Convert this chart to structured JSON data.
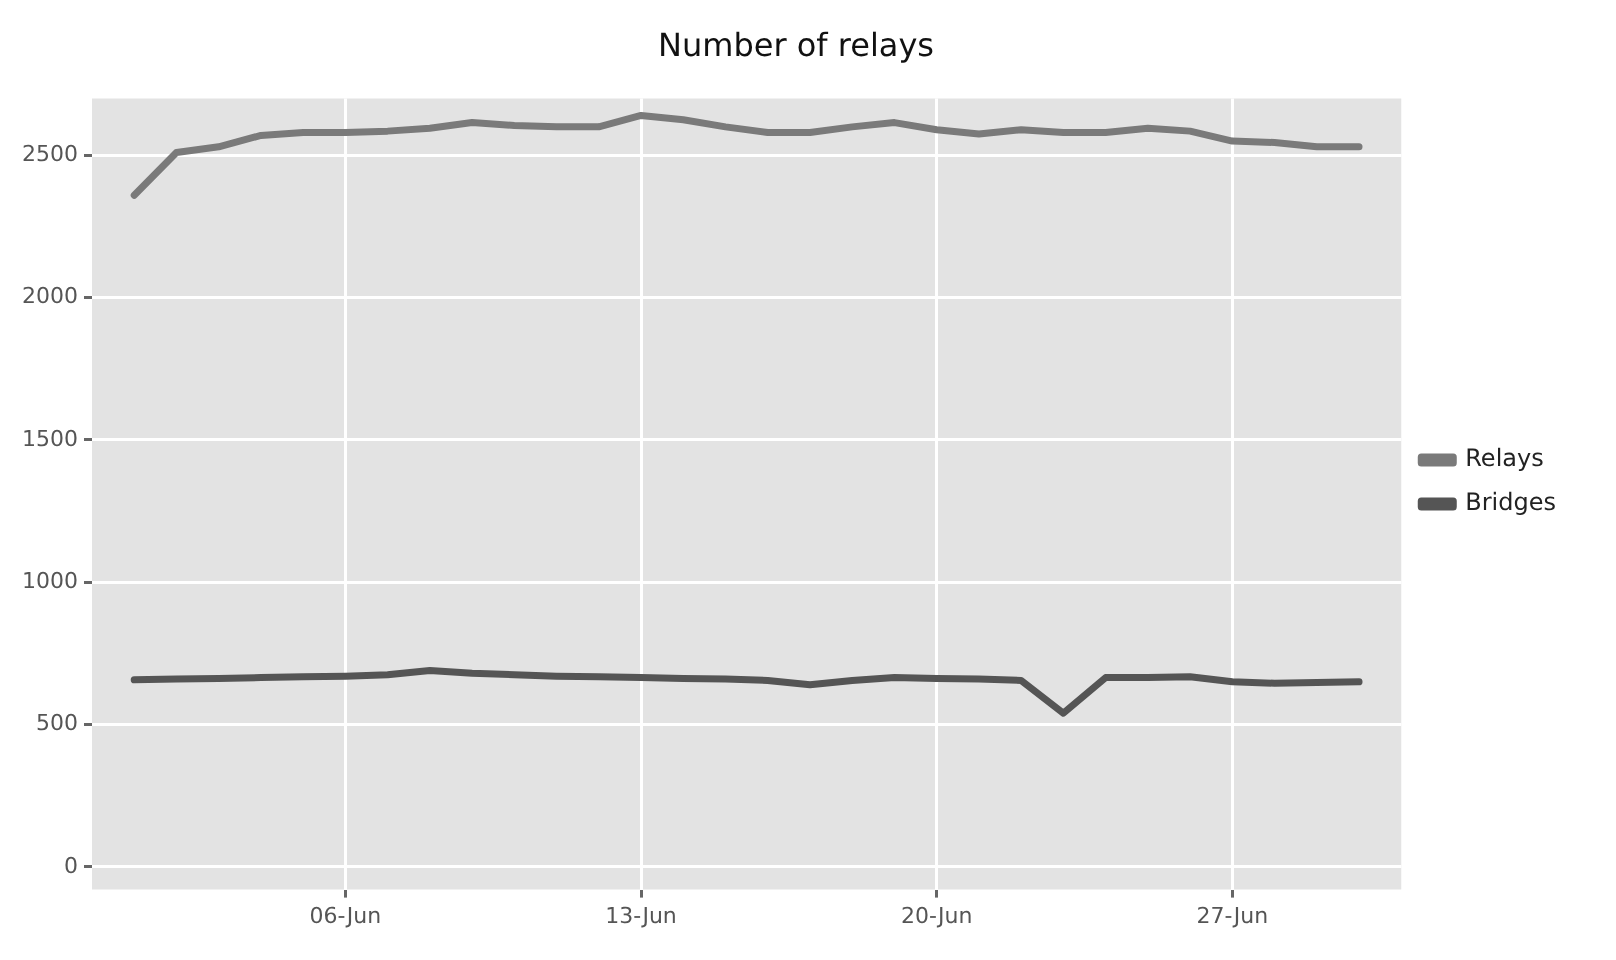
{
  "chart_data": {
    "type": "line",
    "title": "Number of relays",
    "x": [
      "--06-01",
      "--06-02",
      "--06-03",
      "--06-04",
      "--06-05",
      "--06-06",
      "--06-07",
      "--06-08",
      "--06-09",
      "--06-10",
      "--06-11",
      "--06-12",
      "--06-13",
      "--06-14",
      "--06-15",
      "--06-16",
      "--06-17",
      "--06-18",
      "--06-19",
      "--06-20",
      "--06-21",
      "--06-22",
      "--06-23",
      "--06-24",
      "--06-25",
      "--06-26",
      "--06-27",
      "--06-28",
      "--06-29",
      "--06-30"
    ],
    "series": [
      {
        "name": "Relays",
        "color": "#7a7a7a",
        "values": [
          2360,
          2510,
          2530,
          2570,
          2580,
          2580,
          2585,
          2595,
          2615,
          2605,
          2600,
          2600,
          2640,
          2625,
          2600,
          2580,
          2580,
          2600,
          2615,
          2590,
          2575,
          2590,
          2580,
          2580,
          2595,
          2585,
          2550,
          2545,
          2530,
          2530
        ]
      },
      {
        "name": "Bridges",
        "color": "#555555",
        "values": [
          657,
          660,
          662,
          665,
          668,
          670,
          675,
          690,
          680,
          675,
          670,
          668,
          665,
          662,
          660,
          655,
          640,
          655,
          665,
          662,
          660,
          655,
          540,
          665,
          665,
          668,
          650,
          645,
          648,
          650
        ]
      }
    ],
    "xlim": [
      "--05-31",
      "--07-01"
    ],
    "xticks": [
      {
        "value": "--06-06",
        "label": "06-Jun"
      },
      {
        "value": "--06-13",
        "label": "13-Jun"
      },
      {
        "value": "--06-20",
        "label": "20-Jun"
      },
      {
        "value": "--06-27",
        "label": "27-Jun"
      }
    ],
    "ylim": [
      -80,
      2700
    ],
    "yticks": [
      0,
      500,
      1000,
      1500,
      2000,
      2500
    ],
    "grid": true,
    "legend": "right",
    "marker": "none",
    "line_style": "solid"
  }
}
